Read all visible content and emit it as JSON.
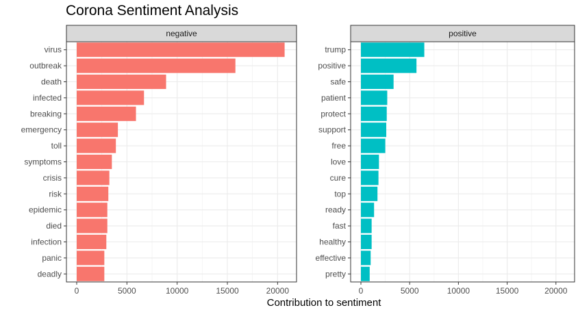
{
  "title": "Corona Sentiment Analysis",
  "chart_data": {
    "type": "bar",
    "orientation": "horizontal",
    "title": "Corona Sentiment Analysis",
    "xlabel": "Contribution to sentiment",
    "ylabel": "",
    "xlim": [
      0,
      21000
    ],
    "xticks": [
      0,
      5000,
      10000,
      15000,
      20000
    ],
    "grid": true,
    "panels": [
      {
        "name": "negative",
        "color": "#F8766D",
        "categories": [
          "virus",
          "outbreak",
          "death",
          "infected",
          "breaking",
          "emergency",
          "toll",
          "symptoms",
          "crisis",
          "risk",
          "epidemic",
          "died",
          "infection",
          "panic",
          "deadly"
        ],
        "values": [
          20700,
          15800,
          8900,
          6700,
          5900,
          4100,
          3900,
          3500,
          3250,
          3150,
          3050,
          3050,
          2950,
          2750,
          2750
        ]
      },
      {
        "name": "positive",
        "color": "#00BFC4",
        "categories": [
          "trump",
          "positive",
          "safe",
          "patient",
          "protect",
          "support",
          "free",
          "love",
          "cure",
          "top",
          "ready",
          "fast",
          "healthy",
          "effective",
          "pretty"
        ],
        "values": [
          6500,
          5700,
          3350,
          2700,
          2650,
          2600,
          2500,
          1850,
          1800,
          1700,
          1350,
          1100,
          1100,
          1000,
          900
        ]
      }
    ]
  }
}
